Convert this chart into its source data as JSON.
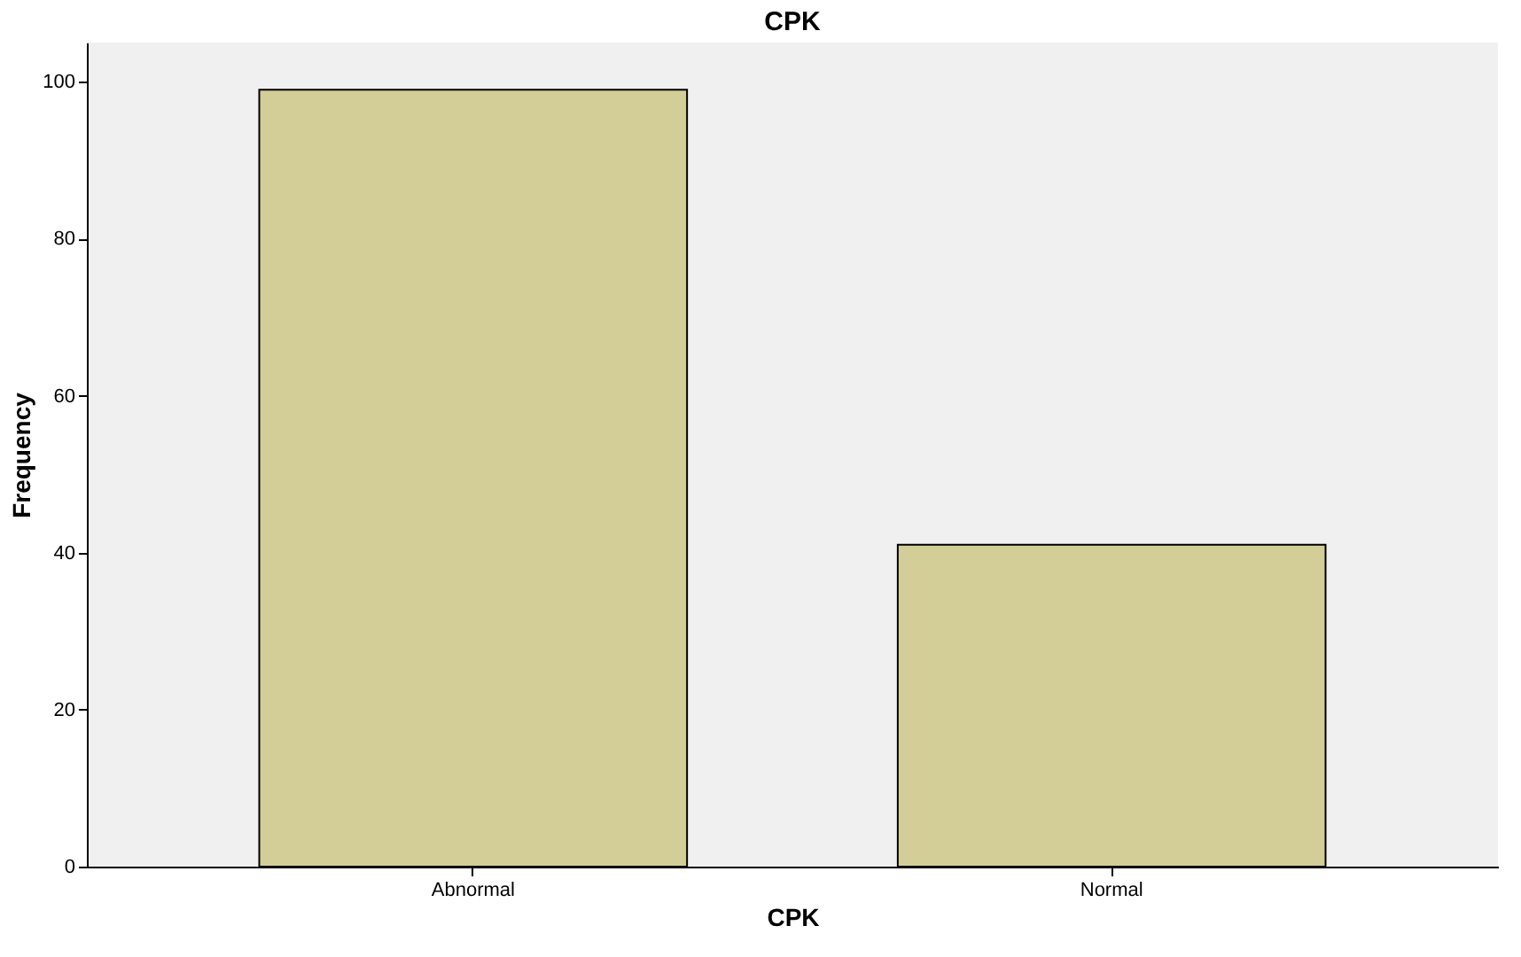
{
  "chart_data": {
    "type": "bar",
    "title": "CPK",
    "xlabel": "CPK",
    "ylabel": "Frequency",
    "categories": [
      "Abnormal",
      "Normal"
    ],
    "values": [
      99,
      41
    ],
    "color": "#d3ce97",
    "ylim": [
      0,
      105
    ],
    "yticks": [
      0,
      20,
      40,
      60,
      80,
      100
    ],
    "grid": false
  }
}
